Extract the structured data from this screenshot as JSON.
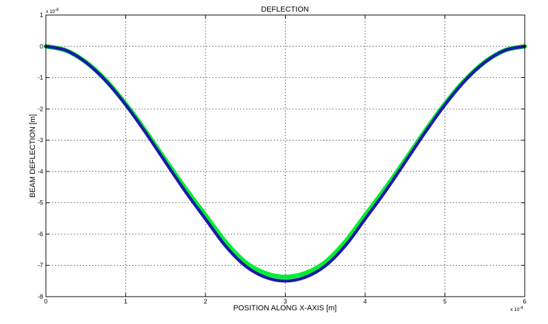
{
  "chart_data": {
    "type": "line",
    "title": "DEFLECTION",
    "xlabel": "POSITION ALONG X-AXIS [m]",
    "ylabel": "BEAM DEFLECTION [m]",
    "x_multiplier_label": "x 10",
    "x_multiplier_exp": "-4",
    "y_multiplier_label": "x 10",
    "y_multiplier_exp": "-8",
    "xlim": [
      0,
      6
    ],
    "ylim": [
      -8,
      1
    ],
    "x_ticks": [
      0,
      1,
      2,
      3,
      4,
      5,
      6
    ],
    "y_ticks": [
      1,
      0,
      -1,
      -2,
      -3,
      -4,
      -5,
      -6,
      -7,
      -8
    ],
    "x_tick_labels": [
      "0",
      "1",
      "2",
      "3",
      "4",
      "5",
      "6"
    ],
    "y_tick_labels": [
      "1",
      "0",
      "-1",
      "-2",
      "-3",
      "-4",
      "-5",
      "-6",
      "-7",
      "-8"
    ],
    "grid": true,
    "series": [
      {
        "color": "#00ee33",
        "x": [
          0,
          0.25,
          0.5,
          0.75,
          1.0,
          1.25,
          1.5,
          1.75,
          2.0,
          2.25,
          2.5,
          2.75,
          3.0,
          3.25,
          3.5,
          3.75,
          4.0,
          4.25,
          4.5,
          4.75,
          5.0,
          5.25,
          5.5,
          5.75,
          6.0
        ],
        "y": [
          0,
          -0.13,
          -0.5,
          -1.08,
          -1.84,
          -2.71,
          -3.64,
          -4.55,
          -5.4,
          -6.25,
          -6.9,
          -7.25,
          -7.37,
          -7.25,
          -6.9,
          -6.25,
          -5.4,
          -4.55,
          -3.64,
          -2.71,
          -1.84,
          -1.08,
          -0.5,
          -0.13,
          0
        ]
      },
      {
        "color": "#1a1aa8",
        "x": [
          0,
          0.25,
          0.5,
          0.75,
          1.0,
          1.25,
          1.5,
          1.75,
          2.0,
          2.25,
          2.5,
          2.75,
          3.0,
          3.25,
          3.5,
          3.75,
          4.0,
          4.25,
          4.5,
          4.75,
          5.0,
          5.25,
          5.5,
          5.75,
          6.0
        ],
        "y": [
          0,
          -0.13,
          -0.51,
          -1.1,
          -1.87,
          -2.76,
          -3.71,
          -4.65,
          -5.52,
          -6.38,
          -7.02,
          -7.38,
          -7.5,
          -7.38,
          -7.02,
          -6.38,
          -5.52,
          -4.65,
          -3.71,
          -2.76,
          -1.87,
          -1.1,
          -0.51,
          -0.13,
          0
        ]
      }
    ]
  }
}
